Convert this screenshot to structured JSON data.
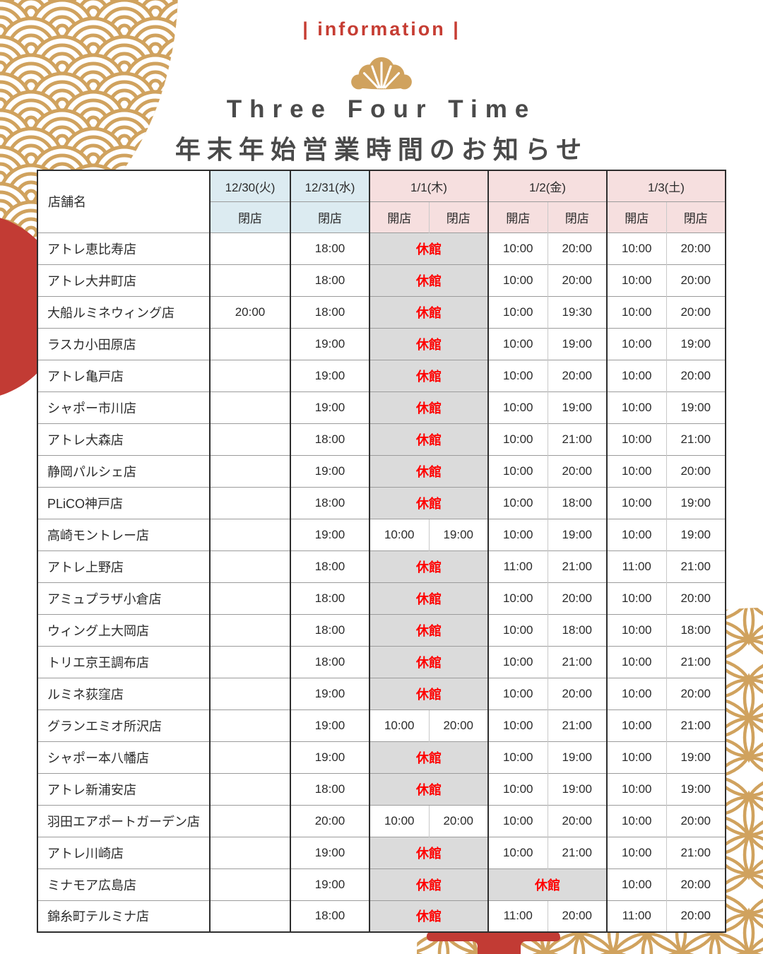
{
  "header": {
    "info_label": "| information |",
    "title": "Three Four Time",
    "subtitle": "年末年始営業時間のお知らせ"
  },
  "colors": {
    "accent_red": "#c63d33",
    "decoration_red": "#c23b34",
    "closed_text_red": "#ff0000",
    "gold": "#d0a25e",
    "header_blue": "#dcebf1",
    "header_pink": "#f6dfdf",
    "closed_cell_gray": "#dbdbdb",
    "title_gray": "#4a4a4a"
  },
  "table": {
    "store_header": "店舗名",
    "open_label": "開店",
    "close_label": "閉店",
    "closed_label": "休館",
    "columns": [
      {
        "date": "12/30(火)",
        "theme": "blue",
        "subs": [
          "閉店"
        ]
      },
      {
        "date": "12/31(水)",
        "theme": "blue",
        "subs": [
          "閉店"
        ]
      },
      {
        "date": "1/1(木)",
        "theme": "pink",
        "subs": [
          "開店",
          "閉店"
        ]
      },
      {
        "date": "1/2(金)",
        "theme": "pink",
        "subs": [
          "開店",
          "閉店"
        ]
      },
      {
        "date": "1/3(土)",
        "theme": "pink",
        "subs": [
          "開店",
          "閉店"
        ]
      }
    ],
    "rows": [
      {
        "store": "アトレ恵比寿店",
        "d1230": "",
        "d1231": "18:00",
        "d0101": "休館",
        "d0102": [
          "10:00",
          "20:00"
        ],
        "d0103": [
          "10:00",
          "20:00"
        ]
      },
      {
        "store": "アトレ大井町店",
        "d1230": "",
        "d1231": "18:00",
        "d0101": "休館",
        "d0102": [
          "10:00",
          "20:00"
        ],
        "d0103": [
          "10:00",
          "20:00"
        ]
      },
      {
        "store": "大船ルミネウィング店",
        "d1230": "20:00",
        "d1231": "18:00",
        "d0101": "休館",
        "d0102": [
          "10:00",
          "19:30"
        ],
        "d0103": [
          "10:00",
          "20:00"
        ]
      },
      {
        "store": "ラスカ小田原店",
        "d1230": "",
        "d1231": "19:00",
        "d0101": "休館",
        "d0102": [
          "10:00",
          "19:00"
        ],
        "d0103": [
          "10:00",
          "19:00"
        ]
      },
      {
        "store": "アトレ亀戸店",
        "d1230": "",
        "d1231": "19:00",
        "d0101": "休館",
        "d0102": [
          "10:00",
          "20:00"
        ],
        "d0103": [
          "10:00",
          "20:00"
        ]
      },
      {
        "store": "シャポー市川店",
        "d1230": "",
        "d1231": "19:00",
        "d0101": "休館",
        "d0102": [
          "10:00",
          "19:00"
        ],
        "d0103": [
          "10:00",
          "19:00"
        ]
      },
      {
        "store": "アトレ大森店",
        "d1230": "",
        "d1231": "18:00",
        "d0101": "休館",
        "d0102": [
          "10:00",
          "21:00"
        ],
        "d0103": [
          "10:00",
          "21:00"
        ]
      },
      {
        "store": "静岡パルシェ店",
        "d1230": "",
        "d1231": "19:00",
        "d0101": "休館",
        "d0102": [
          "10:00",
          "20:00"
        ],
        "d0103": [
          "10:00",
          "20:00"
        ]
      },
      {
        "store": "PLiCO神戸店",
        "d1230": "",
        "d1231": "18:00",
        "d0101": "休館",
        "d0102": [
          "10:00",
          "18:00"
        ],
        "d0103": [
          "10:00",
          "19:00"
        ]
      },
      {
        "store": "高崎モントレー店",
        "d1230": "",
        "d1231": "19:00",
        "d0101": [
          "10:00",
          "19:00"
        ],
        "d0102": [
          "10:00",
          "19:00"
        ],
        "d0103": [
          "10:00",
          "19:00"
        ]
      },
      {
        "store": "アトレ上野店",
        "d1230": "",
        "d1231": "18:00",
        "d0101": "休館",
        "d0102": [
          "11:00",
          "21:00"
        ],
        "d0103": [
          "11:00",
          "21:00"
        ]
      },
      {
        "store": "アミュプラザ小倉店",
        "d1230": "",
        "d1231": "18:00",
        "d0101": "休館",
        "d0102": [
          "10:00",
          "20:00"
        ],
        "d0103": [
          "10:00",
          "20:00"
        ]
      },
      {
        "store": "ウィング上大岡店",
        "d1230": "",
        "d1231": "18:00",
        "d0101": "休館",
        "d0102": [
          "10:00",
          "18:00"
        ],
        "d0103": [
          "10:00",
          "18:00"
        ]
      },
      {
        "store": "トリエ京王調布店",
        "d1230": "",
        "d1231": "18:00",
        "d0101": "休館",
        "d0102": [
          "10:00",
          "21:00"
        ],
        "d0103": [
          "10:00",
          "21:00"
        ]
      },
      {
        "store": "ルミネ荻窪店",
        "d1230": "",
        "d1231": "19:00",
        "d0101": "休館",
        "d0102": [
          "10:00",
          "20:00"
        ],
        "d0103": [
          "10:00",
          "20:00"
        ]
      },
      {
        "store": "グランエミオ所沢店",
        "d1230": "",
        "d1231": "19:00",
        "d0101": [
          "10:00",
          "20:00"
        ],
        "d0102": [
          "10:00",
          "21:00"
        ],
        "d0103": [
          "10:00",
          "21:00"
        ]
      },
      {
        "store": "シャポー本八幡店",
        "d1230": "",
        "d1231": "19:00",
        "d0101": "休館",
        "d0102": [
          "10:00",
          "19:00"
        ],
        "d0103": [
          "10:00",
          "19:00"
        ]
      },
      {
        "store": "アトレ新浦安店",
        "d1230": "",
        "d1231": "18:00",
        "d0101": "休館",
        "d0102": [
          "10:00",
          "19:00"
        ],
        "d0103": [
          "10:00",
          "19:00"
        ]
      },
      {
        "store": "羽田エアポートガーデン店",
        "d1230": "",
        "d1231": "20:00",
        "d0101": [
          "10:00",
          "20:00"
        ],
        "d0102": [
          "10:00",
          "20:00"
        ],
        "d0103": [
          "10:00",
          "20:00"
        ]
      },
      {
        "store": "アトレ川崎店",
        "d1230": "",
        "d1231": "19:00",
        "d0101": "休館",
        "d0102": [
          "10:00",
          "21:00"
        ],
        "d0103": [
          "10:00",
          "21:00"
        ]
      },
      {
        "store": "ミナモア広島店",
        "d1230": "",
        "d1231": "19:00",
        "d0101": "休館",
        "d0102": "休館",
        "d0103": [
          "10:00",
          "20:00"
        ]
      },
      {
        "store": "錦糸町テルミナ店",
        "d1230": "",
        "d1231": "18:00",
        "d0101": "休館",
        "d0102": [
          "11:00",
          "20:00"
        ],
        "d0103": [
          "11:00",
          "20:00"
        ]
      }
    ]
  }
}
